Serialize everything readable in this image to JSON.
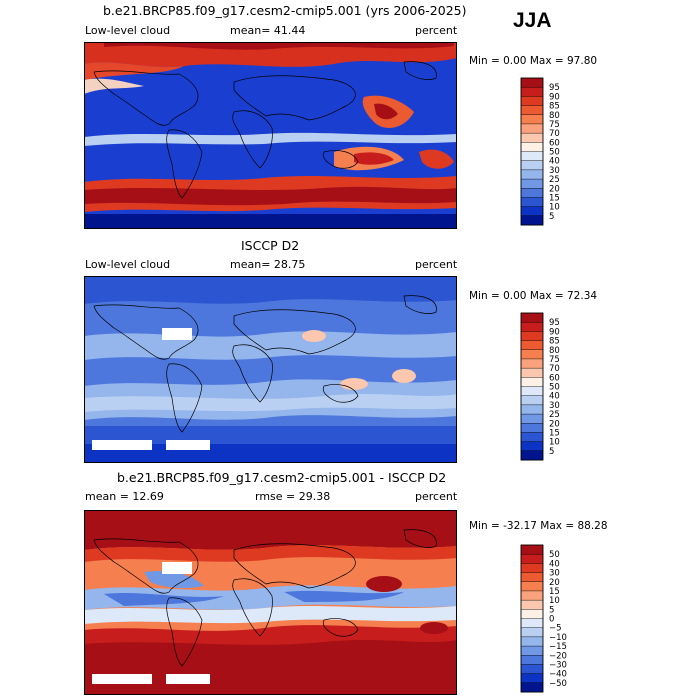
{
  "season": "JJA",
  "panels": [
    {
      "title": "b.e21.BRCP85.f09_g17.cesm2-cmip5.001 (yrs 2006-2025)",
      "left_label": "Low-level cloud",
      "center_label": "mean=  41.44",
      "right_label": "percent",
      "stats": "Min =   0.00 Max =  97.80",
      "colorbar_labels": [
        "95",
        "90",
        "85",
        "80",
        "75",
        "70",
        "60",
        "50",
        "40",
        "30",
        "25",
        "20",
        "15",
        "10",
        "5"
      ],
      "colorbar_colors": [
        "#a50f15",
        "#c81d1d",
        "#de3a22",
        "#ec5a32",
        "#f57f4e",
        "#f9a27d",
        "#fbc7ae",
        "#fdf1e6",
        "#dde8f8",
        "#b9d0f2",
        "#95b6ec",
        "#7098e4",
        "#4d77dc",
        "#2c55d2",
        "#0d33c4",
        "#00148e"
      ]
    },
    {
      "title": "ISCCP D2",
      "left_label": "Low-level cloud",
      "center_label": "mean=  28.75",
      "right_label": "percent",
      "stats": "Min =   0.00 Max =  72.34",
      "colorbar_labels": [
        "95",
        "90",
        "85",
        "80",
        "75",
        "70",
        "60",
        "50",
        "40",
        "30",
        "25",
        "20",
        "15",
        "10",
        "5"
      ],
      "colorbar_colors": [
        "#a50f15",
        "#c81d1d",
        "#de3a22",
        "#ec5a32",
        "#f57f4e",
        "#f9a27d",
        "#fbc7ae",
        "#fdf1e6",
        "#dde8f8",
        "#b9d0f2",
        "#95b6ec",
        "#7098e4",
        "#4d77dc",
        "#2c55d2",
        "#0d33c4",
        "#00148e"
      ]
    },
    {
      "title": "b.e21.BRCP85.f09_g17.cesm2-cmip5.001 - ISCCP D2",
      "left_label": "mean =  12.69",
      "center_label": "rmse =  29.38",
      "right_label": "percent",
      "stats": "Min = -32.17 Max =  88.28",
      "colorbar_labels": [
        "50",
        "40",
        "30",
        "20",
        "15",
        "10",
        "5",
        "0",
        "−5",
        "−10",
        "−15",
        "−20",
        "−30",
        "−40",
        "−50"
      ],
      "colorbar_colors": [
        "#a50f15",
        "#c81d1d",
        "#de3a22",
        "#ec5a32",
        "#f57f4e",
        "#f9a27d",
        "#fbc7ae",
        "#fdf1e6",
        "#dde8f8",
        "#b9d0f2",
        "#95b6ec",
        "#7098e4",
        "#4d77dc",
        "#2c55d2",
        "#0d33c4",
        "#00148e"
      ]
    }
  ],
  "chart_data": [
    {
      "type": "heatmap",
      "title": "b.e21.BRCP85.f09_g17.cesm2-cmip5.001 (yrs 2006-2025)",
      "variable": "Low-level cloud",
      "units": "percent",
      "season": "JJA",
      "mean": 41.44,
      "min": 0.0,
      "max": 97.8,
      "contour_levels": [
        5,
        10,
        15,
        20,
        25,
        30,
        40,
        50,
        60,
        70,
        75,
        80,
        85,
        90,
        95
      ]
    },
    {
      "type": "heatmap",
      "title": "ISCCP D2",
      "variable": "Low-level cloud",
      "units": "percent",
      "mean": 28.75,
      "min": 0.0,
      "max": 72.34,
      "contour_levels": [
        5,
        10,
        15,
        20,
        25,
        30,
        40,
        50,
        60,
        70,
        75,
        80,
        85,
        90,
        95
      ]
    },
    {
      "type": "heatmap",
      "title": "b.e21.BRCP85.f09_g17.cesm2-cmip5.001 - ISCCP D2",
      "units": "percent",
      "mean": 12.69,
      "rmse": 29.38,
      "min": -32.17,
      "max": 88.28,
      "contour_levels": [
        -50,
        -40,
        -30,
        -20,
        -15,
        -10,
        -5,
        0,
        5,
        10,
        15,
        20,
        30,
        40,
        50
      ]
    }
  ]
}
